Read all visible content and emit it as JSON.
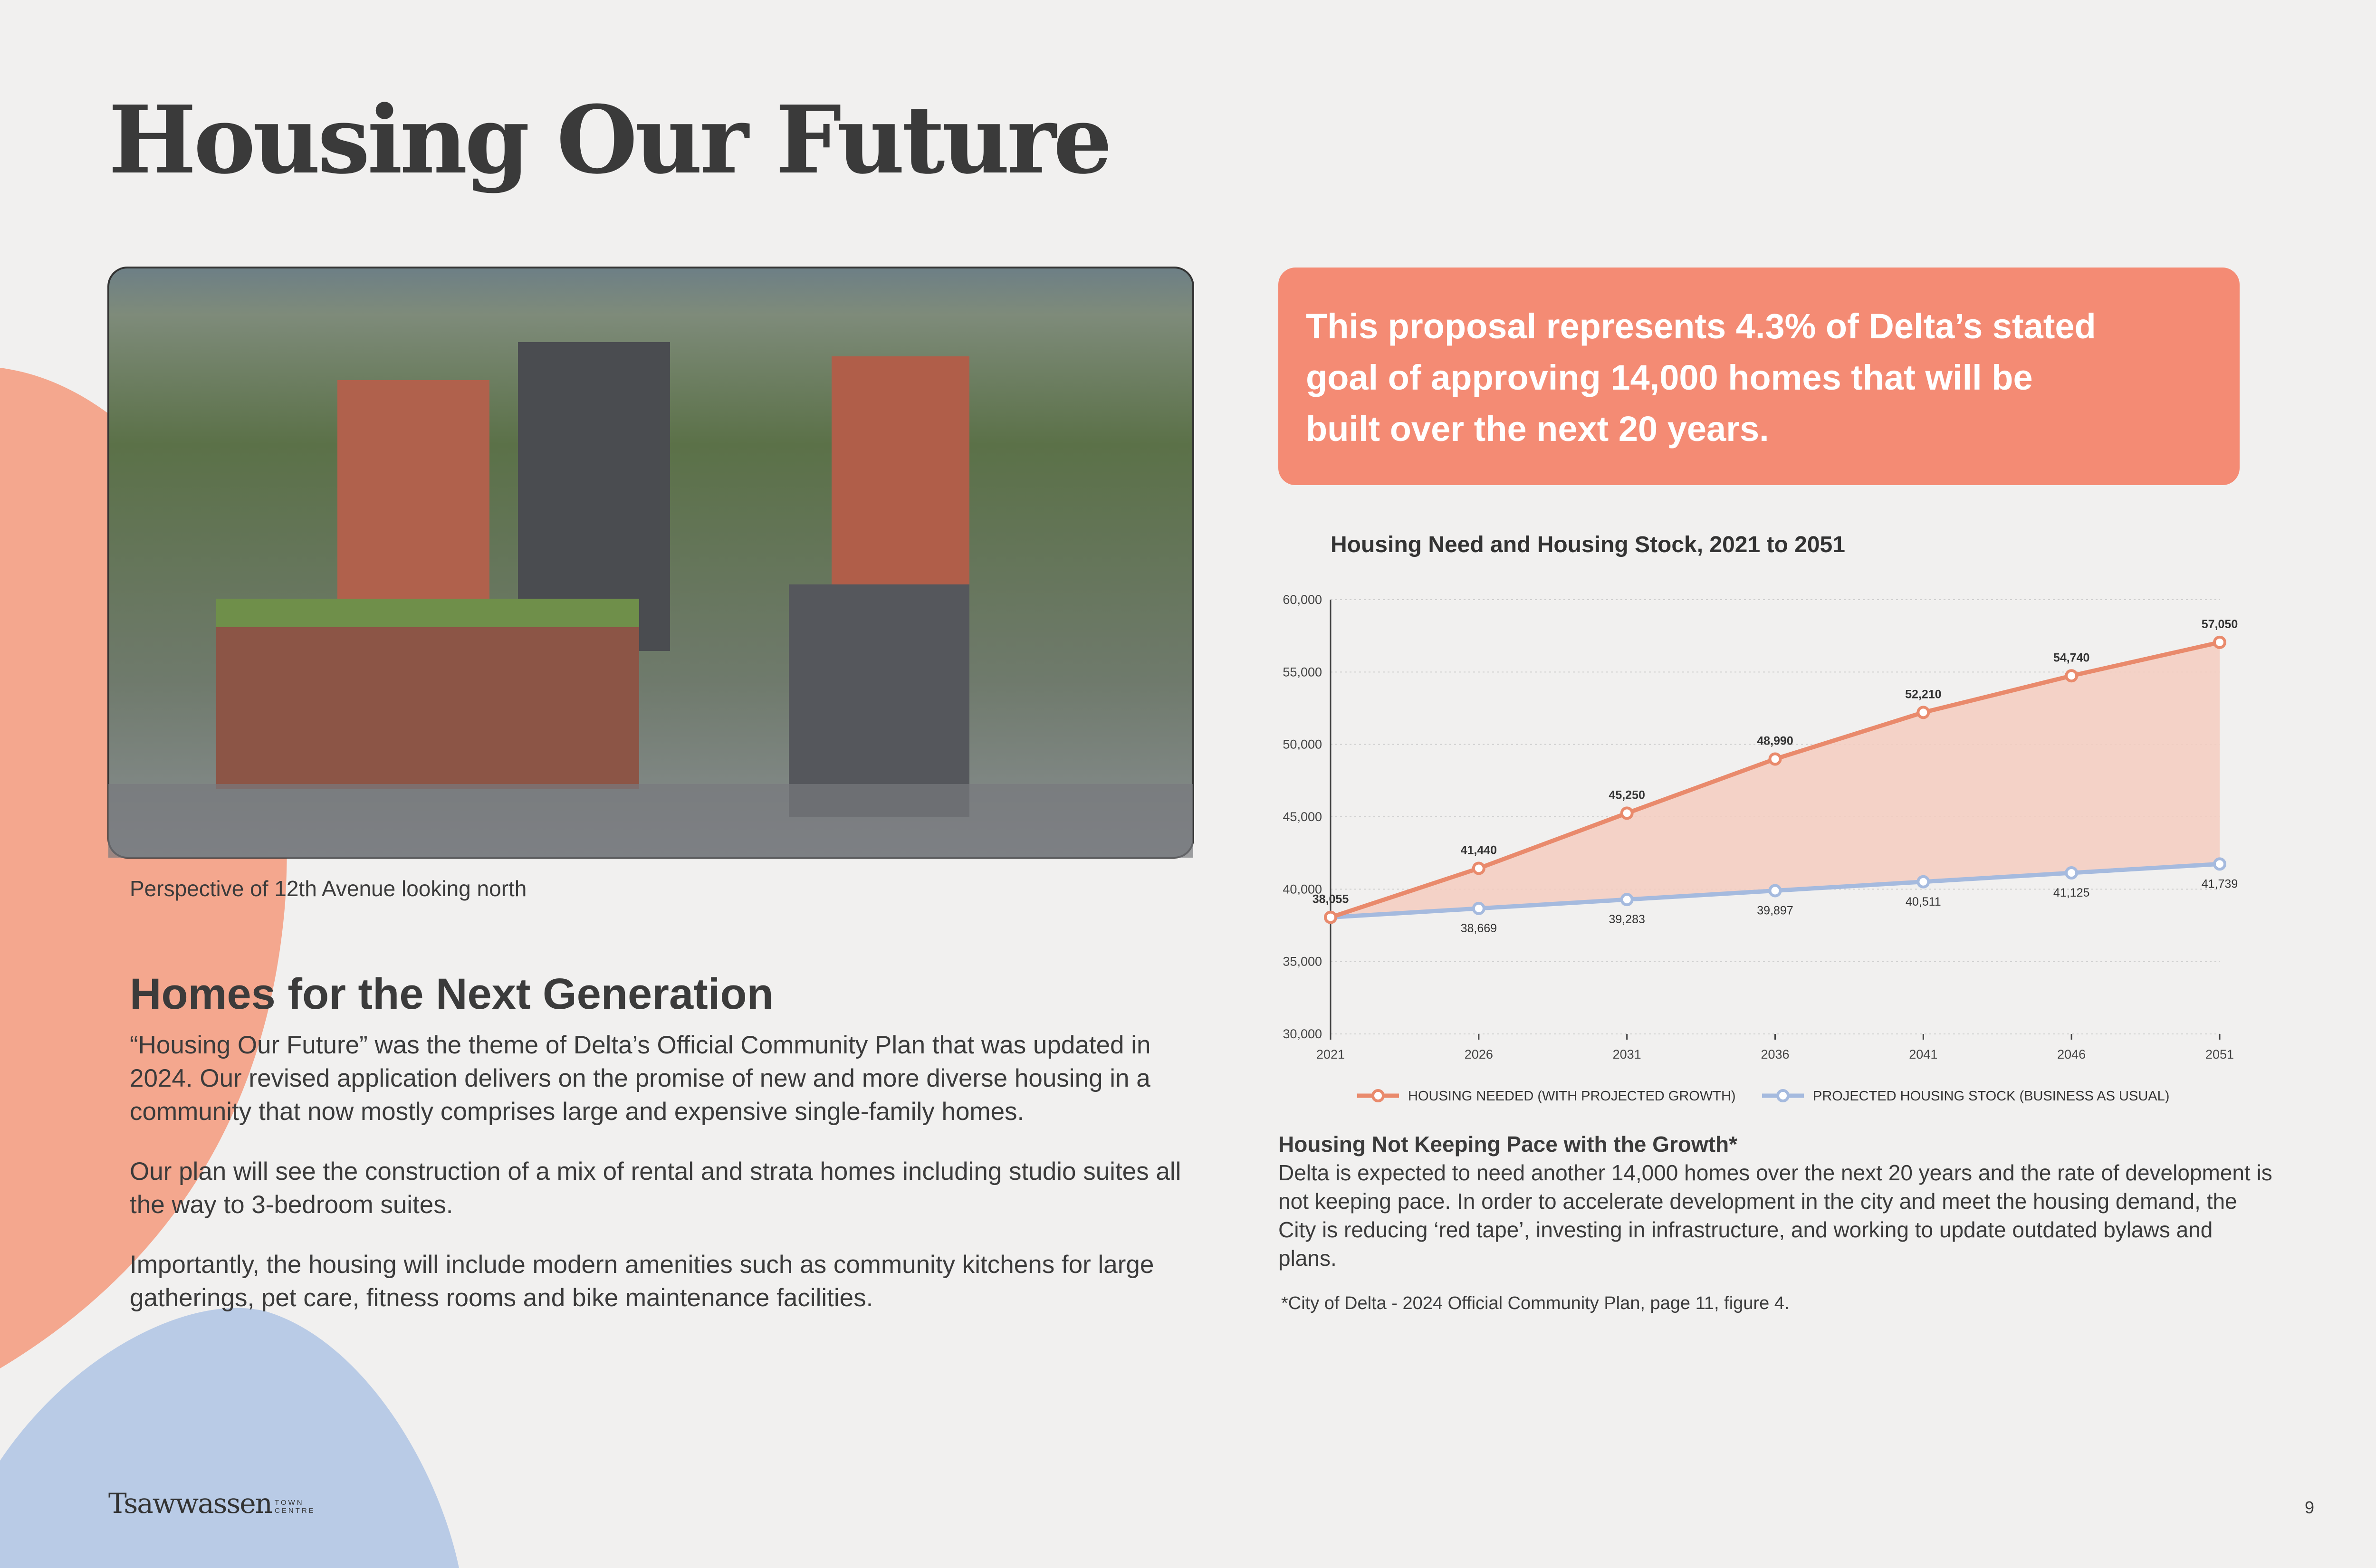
{
  "title": "Housing Our Future",
  "caption": "Perspective of 12th Avenue looking north",
  "section": {
    "heading": "Homes for the Next Generation",
    "paragraphs": [
      "“Housing Our Future” was the theme of Delta’s Official Community Plan that was updated in 2024. Our revised application delivers on the promise of new and more diverse housing in a community that now mostly comprises large and expensive single-family homes.",
      "Our plan will see the construction of a mix of rental and strata homes including studio suites all the way to 3-bedroom suites.",
      "Importantly, the housing will include modern amenities such as community kitchens for large gatherings, pet care, fitness rooms and bike maintenance facilities."
    ]
  },
  "callout": {
    "lines": [
      "This proposal represents 4.3% of Delta’s stated",
      "goal of approving 14,000 homes that will be",
      "built over the next 20 years."
    ]
  },
  "chart_data": {
    "type": "line",
    "title": "Housing Need and Housing Stock, 2021 to 2051",
    "categories": [
      "2021",
      "2026",
      "2031",
      "2036",
      "2041",
      "2046",
      "2051"
    ],
    "series": [
      {
        "name": "HOUSING NEEDED (WITH PROJECTED GROWTH)",
        "color": "#e98a6c",
        "values": [
          38055,
          41440,
          45250,
          48990,
          52210,
          54740,
          57050
        ],
        "value_labels": [
          "38,055",
          "41,440",
          "45,250",
          "48,990",
          "52,210",
          "54,740",
          "57,050"
        ]
      },
      {
        "name": "PROJECTED HOUSING STOCK (BUSINESS AS USUAL)",
        "color": "#a5bade",
        "values": [
          38055,
          38669,
          39283,
          39897,
          40511,
          41125,
          41739
        ],
        "value_labels": [
          null,
          "38,669",
          "39,283",
          "39,897",
          "40,511",
          "41,125",
          "41,739"
        ]
      }
    ],
    "fill_between": "#f4cdc0",
    "ylim": [
      30000,
      60000
    ],
    "yticks": [
      {
        "value": 30000,
        "label": "30,000"
      },
      {
        "value": 35000,
        "label": "35,000"
      },
      {
        "value": 40000,
        "label": "40,000"
      },
      {
        "value": 45000,
        "label": "45,000"
      },
      {
        "value": 50000,
        "label": "50,000"
      },
      {
        "value": 55000,
        "label": "55,000"
      },
      {
        "value": 60000,
        "label": "60,000"
      }
    ],
    "grid": true,
    "legend": "bottom"
  },
  "note": {
    "heading": "Housing Not Keeping Pace with the Growth*",
    "body": "Delta is expected to need another 14,000 homes over the next 20 years and the rate of development is not keeping pace. In order to accelerate development in the city and meet the housing demand, the City is reducing ‘red tape’, investing in infrastructure, and working to update outdated bylaws and plans.",
    "footnote": "*City of Delta - 2024 Official Community Plan, page 11, figure 4."
  },
  "footer": {
    "brand": "Tsawwassen",
    "brand_sub": [
      "TOWN",
      "CENTRE"
    ],
    "page": "9"
  }
}
